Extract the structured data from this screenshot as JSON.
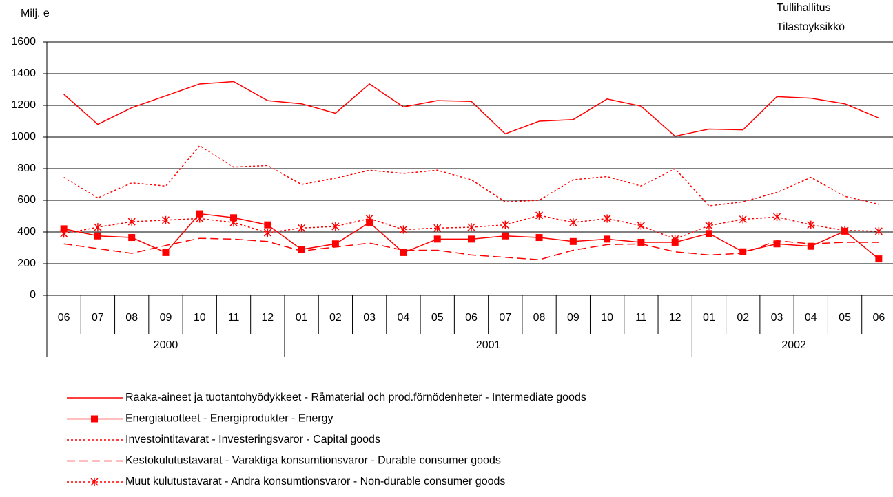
{
  "chart_data": {
    "type": "line",
    "y_unit_label": "Milj. e",
    "source": [
      "Tullihallitus",
      "Tilastoyksikkö"
    ],
    "category_groups": [
      {
        "label": "2000",
        "categories": [
          "06",
          "07",
          "08",
          "09",
          "10",
          "11",
          "12"
        ]
      },
      {
        "label": "2001",
        "categories": [
          "01",
          "02",
          "03",
          "04",
          "05",
          "06",
          "07",
          "08",
          "09",
          "10",
          "11",
          "12"
        ]
      },
      {
        "label": "2002",
        "categories": [
          "01",
          "02",
          "03",
          "04",
          "05",
          "06"
        ]
      }
    ],
    "ylim": [
      0,
      1600
    ],
    "yticks": [
      0,
      200,
      400,
      600,
      800,
      1000,
      1200,
      1400,
      1600
    ],
    "grid": true,
    "series": [
      {
        "name": "Raaka-aineet ja tuotantohyödykkeet - Råmaterial och prod.förnödenheter - Intermediate goods",
        "color": "#ff0000",
        "line_style": "solid",
        "values": [
          1270,
          1080,
          1185,
          1260,
          1335,
          1350,
          1230,
          1210,
          1150,
          1335,
          1190,
          1230,
          1225,
          1020,
          1100,
          1110,
          1240,
          1195,
          1005,
          1050,
          1045,
          1255,
          1245,
          1210,
          1120
        ]
      },
      {
        "name": "Energiatuotteet - Energiprodukter - Energy",
        "color": "#ff0000",
        "line_style": "solid",
        "marker": "square",
        "values": [
          420,
          375,
          365,
          270,
          515,
          490,
          445,
          290,
          325,
          460,
          270,
          355,
          355,
          375,
          365,
          340,
          355,
          335,
          335,
          390,
          275,
          325,
          310,
          405,
          230
        ]
      },
      {
        "name": "Investointitavarat - Investeringsvaror - Capital goods",
        "color": "#ff0000",
        "line_style": "dotted",
        "values": [
          745,
          615,
          710,
          690,
          945,
          810,
          820,
          700,
          740,
          790,
          770,
          790,
          730,
          590,
          600,
          730,
          750,
          690,
          800,
          565,
          590,
          650,
          745,
          625,
          575
        ]
      },
      {
        "name": "Kestokulutustavarat - Varaktiga konsumtionsvaror - Durable consumer goods",
        "color": "#ff0000",
        "line_style": "dashed",
        "values": [
          325,
          295,
          265,
          315,
          360,
          355,
          340,
          280,
          305,
          330,
          285,
          285,
          255,
          240,
          225,
          285,
          320,
          325,
          275,
          255,
          265,
          345,
          325,
          335,
          335
        ]
      },
      {
        "name": "Muut kulutustavarat - Andra konsumtionsvaror - Non-durable consumer goods",
        "color": "#ff0000",
        "line_style": "dotted",
        "marker": "asterisk",
        "values": [
          390,
          430,
          465,
          475,
          485,
          460,
          395,
          425,
          435,
          485,
          415,
          425,
          430,
          445,
          505,
          460,
          485,
          440,
          355,
          440,
          480,
          495,
          445,
          410,
          405
        ]
      }
    ]
  }
}
